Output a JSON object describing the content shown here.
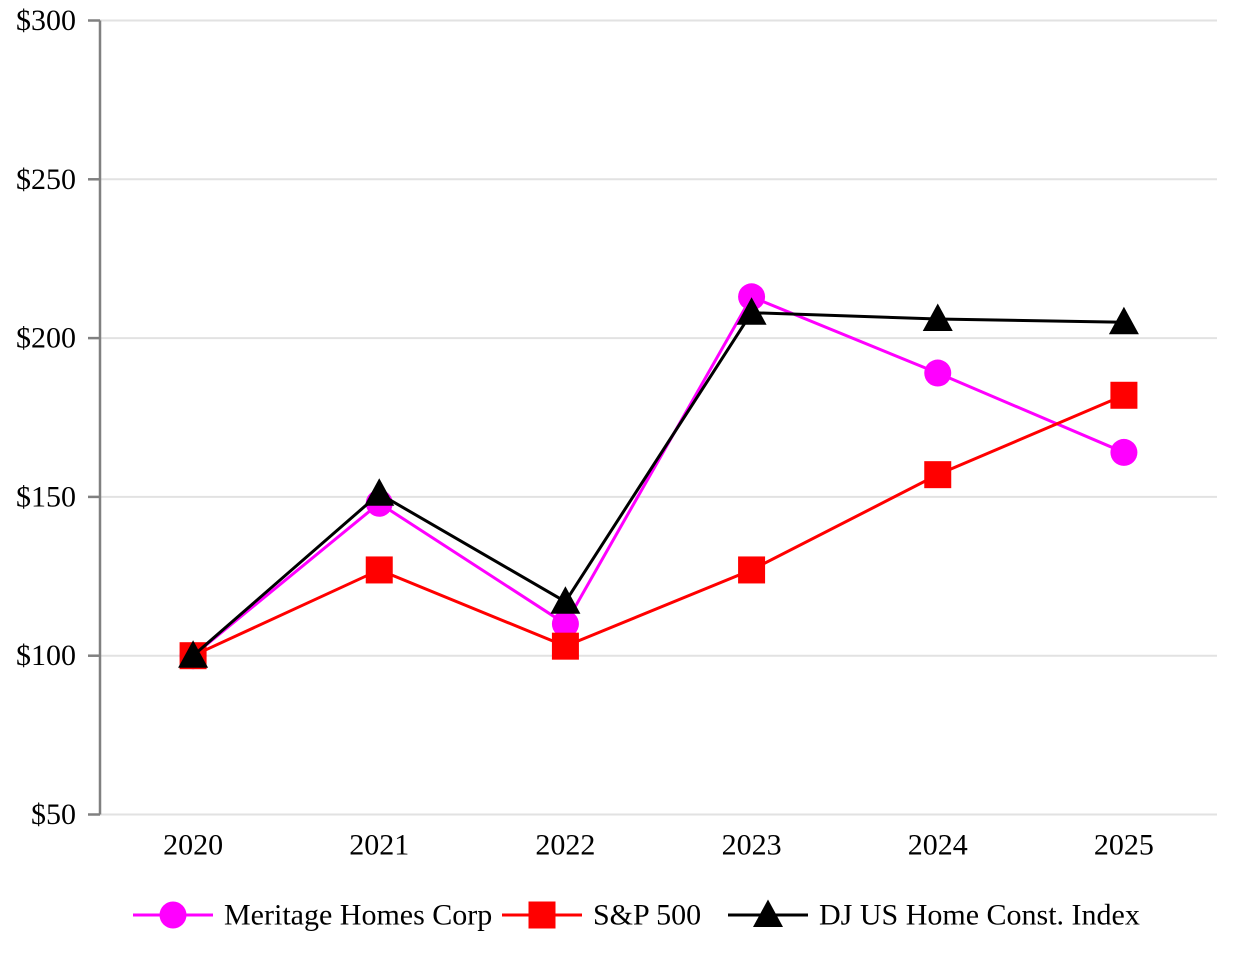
{
  "chart_data": {
    "type": "line",
    "title": "",
    "xlabel": "",
    "ylabel": "",
    "x_labels": [
      "2020",
      "2021",
      "2022",
      "2023",
      "2024",
      "2025"
    ],
    "y_axis": {
      "min": 50,
      "max": 300,
      "tick_interval": 50,
      "tick_labels": [
        "$50",
        "$100",
        "$150",
        "$200",
        "$250",
        "$300"
      ]
    },
    "grid": "horizontal",
    "legend_position": "bottom",
    "colors": {
      "gridline": "#e2e2e2",
      "axis": "#808080",
      "tick": "#808080",
      "text": "#000000",
      "background": "#ffffff"
    },
    "series": [
      {
        "name": "Meritage Homes Corp",
        "color": "#ff00ff",
        "marker": "circle",
        "values": [
          100,
          148,
          110,
          213,
          189,
          164
        ]
      },
      {
        "name": "S&P 500",
        "color": "#ff0000",
        "marker": "square",
        "values": [
          100,
          127,
          103,
          127,
          157,
          182
        ]
      },
      {
        "name": "DJ US Home Const. Index",
        "color": "#000000",
        "marker": "triangle",
        "values": [
          100,
          151,
          117,
          208,
          206,
          205
        ]
      }
    ]
  }
}
